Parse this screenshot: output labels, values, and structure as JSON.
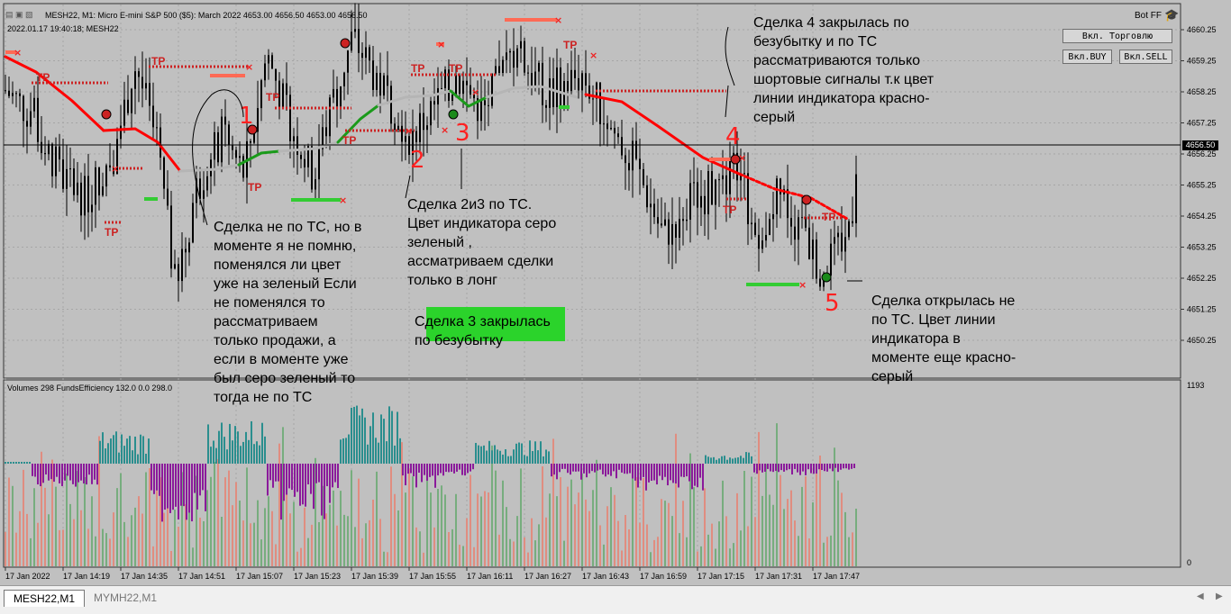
{
  "window": {
    "symbol_line": "MESH22, M1:  Micro E-mini S&P 500 ($5): March 2022  4653.00 4656.50 4653.00 4656.50",
    "info_line": "2022.01.17 19:40:18; MESH22",
    "expert_name": "Bot FF",
    "current_price": "4656.50"
  },
  "buttons": {
    "trade": "Вкл. Торговлю",
    "buy": "Вкл.BUY",
    "sell": "Вкл.SELL"
  },
  "price_axis": [
    "4660.25",
    "4659.25",
    "4658.25",
    "4657.25",
    "4656.25",
    "4655.25",
    "4654.25",
    "4653.25",
    "4652.25",
    "4651.25",
    "4650.25"
  ],
  "volume_axis": {
    "top": "1193",
    "bottom": "0"
  },
  "indicator_label": "Volumes 298 FundsEfficiency 132.0 0.0 298.0",
  "time_axis": [
    "17 Jan 2022",
    "17 Jan 14:19",
    "17 Jan 14:35",
    "17 Jan 14:51",
    "17 Jan 15:07",
    "17 Jan 15:23",
    "17 Jan 15:39",
    "17 Jan 15:55",
    "17 Jan 16:11",
    "17 Jan 16:27",
    "17 Jan 16:43",
    "17 Jan 16:59",
    "17 Jan 17:15",
    "17 Jan 17:31",
    "17 Jan 17:47"
  ],
  "tp_label": "TP",
  "trade_numbers": [
    "1",
    "2",
    "3",
    "4",
    "5"
  ],
  "annotations": {
    "a1": "Сделка не по ТС, но в\nмоменте я не помню,\nпоменялся ли цвет\nуже на зеленый Если\nне поменялся то\nрассматриваем\nтолько продажи, а\nесли в моменте уже\nбыл серо зеленый то\nтогда не по ТС",
    "a2": "Сделка 2и3 по ТС.\nЦвет индикатора серо\nзеленый ,\nассматриваем сделки\nтолько в лонг",
    "a3": "Сделка 3 закрылась\nпо безубытку",
    "a4": "Сделка 4 закрылась по\nбезубытку и по ТС\nрассматриваются только\nшортовые сигналы т.к цвет\nлинии индикатора красно-\nсерый",
    "a5": "Сделка открылась не\nпо ТС. Цвет линии\nиндикатора в\nмоменте еще красно-\nсерый"
  },
  "tabs": [
    "MESH22,M1",
    "MYMH22,M1"
  ],
  "colors": {
    "background": "#c0c0c0",
    "grid": "#a6a6a6",
    "candle": "#000000",
    "tp_red": "#cc2222",
    "bar_green": "#2e9a3d",
    "bar_red": "#ff5a40",
    "efficiency_teal": "#2a8e8e",
    "efficiency_purple": "#8b1a9b",
    "trend_red": "#ff0000",
    "trend_green": "#1a9a1a",
    "trend_grey": "#b5b5b5"
  }
}
